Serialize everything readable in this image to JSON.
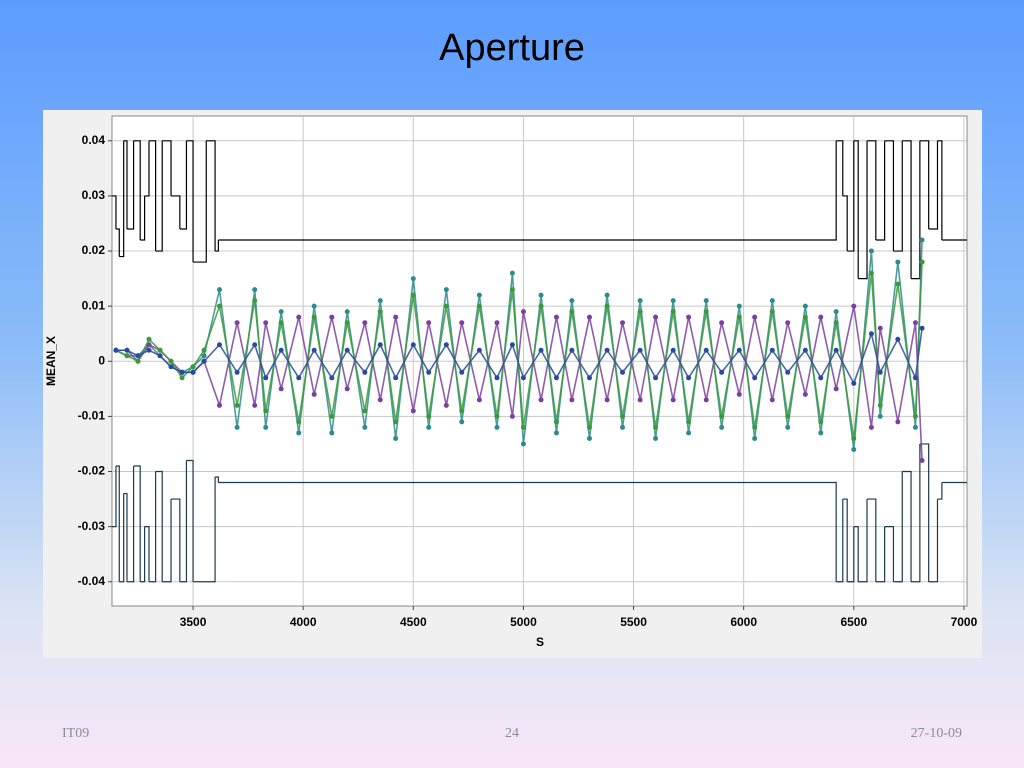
{
  "slide": {
    "title": "Aperture",
    "footer_left": "IT09",
    "page_number": "24",
    "date": "27-10-09"
  },
  "chart_data": {
    "type": "line",
    "x_label": "S",
    "y_label": "MEAN_X",
    "xlim": [
      3132,
      7014
    ],
    "ylim": [
      -0.0444,
      0.0445
    ],
    "xticks": [
      3500,
      4000,
      4500,
      5000,
      5500,
      6000,
      6500,
      7000
    ],
    "yticks": [
      -0.04,
      -0.03,
      -0.02,
      -0.01,
      0,
      0.01,
      0.02,
      0.03,
      0.04
    ],
    "grid": true,
    "series": [
      {
        "color": "#000000",
        "step": true,
        "x": [
          3132,
          3150,
          3165,
          3185,
          3200,
          3230,
          3260,
          3280,
          3300,
          3330,
          3360,
          3400,
          3440,
          3470,
          3500,
          3560,
          3600,
          3615,
          6420,
          6450,
          6470,
          6500,
          6520,
          6560,
          6600,
          6640,
          6680,
          6720,
          6760,
          6800,
          6840,
          6880,
          6900,
          7014
        ],
        "values": [
          0.03,
          0.024,
          0.019,
          0.04,
          0.024,
          0.04,
          0.022,
          0.03,
          0.04,
          0.02,
          0.04,
          0.03,
          0.024,
          0.04,
          0.018,
          0.04,
          0.02,
          0.022,
          0.04,
          0.03,
          0.02,
          0.04,
          0.015,
          0.04,
          0.022,
          0.04,
          0.02,
          0.04,
          0.015,
          0.04,
          0.024,
          0.04,
          0.022,
          0.022
        ]
      },
      {
        "color": "#1c3a4c",
        "step": true,
        "x": [
          3132,
          3150,
          3165,
          3185,
          3200,
          3230,
          3260,
          3280,
          3300,
          3330,
          3360,
          3400,
          3440,
          3470,
          3500,
          3560,
          3600,
          3615,
          6420,
          6450,
          6470,
          6500,
          6520,
          6560,
          6600,
          6640,
          6680,
          6720,
          6760,
          6800,
          6840,
          6880,
          6900,
          7014
        ],
        "values": [
          -0.03,
          -0.019,
          -0.04,
          -0.024,
          -0.04,
          -0.019,
          -0.04,
          -0.03,
          -0.04,
          -0.02,
          -0.04,
          -0.025,
          -0.04,
          -0.018,
          -0.04,
          -0.04,
          -0.021,
          -0.022,
          -0.04,
          -0.025,
          -0.04,
          -0.03,
          -0.04,
          -0.025,
          -0.04,
          -0.03,
          -0.04,
          -0.02,
          -0.04,
          -0.015,
          -0.04,
          -0.025,
          -0.022,
          -0.022
        ]
      },
      {
        "color": "#2e8b8b",
        "x": [
          3150,
          3200,
          3250,
          3300,
          3350,
          3400,
          3450,
          3500,
          3550,
          3620,
          3700,
          3780,
          3830,
          3900,
          3980,
          4050,
          4130,
          4200,
          4280,
          4350,
          4420,
          4500,
          4570,
          4650,
          4720,
          4800,
          4880,
          4950,
          5000,
          5080,
          5150,
          5220,
          5300,
          5380,
          5450,
          5530,
          5600,
          5680,
          5750,
          5830,
          5900,
          5980,
          6050,
          6130,
          6200,
          6280,
          6350,
          6420,
          6500,
          6580,
          6620,
          6700,
          6780,
          6810
        ],
        "values": [
          0.002,
          0.001,
          0.001,
          0.003,
          0.001,
          -0.001,
          -0.002,
          -0.001,
          0.001,
          0.013,
          -0.012,
          0.013,
          -0.012,
          0.009,
          -0.013,
          0.01,
          -0.013,
          0.009,
          -0.012,
          0.011,
          -0.014,
          0.015,
          -0.012,
          0.013,
          -0.011,
          0.012,
          -0.012,
          0.016,
          -0.015,
          0.012,
          -0.013,
          0.011,
          -0.014,
          0.012,
          -0.012,
          0.011,
          -0.014,
          0.011,
          -0.013,
          0.011,
          -0.012,
          0.01,
          -0.014,
          0.011,
          -0.012,
          0.01,
          -0.013,
          0.009,
          -0.016,
          0.02,
          -0.01,
          0.018,
          -0.012,
          0.022
        ]
      },
      {
        "color": "#7b3fa0",
        "x": [
          3150,
          3200,
          3250,
          3300,
          3350,
          3400,
          3450,
          3500,
          3550,
          3620,
          3700,
          3780,
          3830,
          3900,
          3980,
          4050,
          4130,
          4200,
          4280,
          4350,
          4420,
          4500,
          4570,
          4650,
          4720,
          4800,
          4880,
          4950,
          5000,
          5080,
          5150,
          5220,
          5300,
          5380,
          5450,
          5530,
          5600,
          5680,
          5750,
          5830,
          5900,
          5980,
          6050,
          6130,
          6200,
          6280,
          6350,
          6420,
          6500,
          6580,
          6620,
          6700,
          6780,
          6810
        ],
        "values": [
          0.002,
          0.002,
          0,
          0.003,
          0.002,
          0,
          -0.002,
          -0.002,
          0,
          -0.008,
          0.007,
          -0.008,
          0.007,
          -0.005,
          0.008,
          -0.006,
          0.008,
          -0.005,
          0.007,
          -0.007,
          0.008,
          -0.009,
          0.007,
          -0.008,
          0.007,
          -0.007,
          0.007,
          -0.01,
          0.009,
          -0.007,
          0.008,
          -0.007,
          0.008,
          -0.007,
          0.007,
          -0.007,
          0.008,
          -0.007,
          0.008,
          -0.007,
          0.007,
          -0.006,
          0.008,
          -0.007,
          0.007,
          -0.006,
          0.008,
          -0.005,
          0.01,
          -0.012,
          0.006,
          -0.011,
          0.007,
          -0.018
        ]
      },
      {
        "color": "#3a9a3a",
        "x": [
          3150,
          3200,
          3250,
          3300,
          3350,
          3400,
          3450,
          3500,
          3550,
          3620,
          3700,
          3780,
          3830,
          3900,
          3980,
          4050,
          4130,
          4200,
          4280,
          4350,
          4420,
          4500,
          4570,
          4650,
          4720,
          4800,
          4880,
          4950,
          5000,
          5080,
          5150,
          5220,
          5300,
          5380,
          5450,
          5530,
          5600,
          5680,
          5750,
          5830,
          5900,
          5980,
          6050,
          6130,
          6200,
          6280,
          6350,
          6420,
          6500,
          6580,
          6620,
          6700,
          6780,
          6810
        ],
        "values": [
          0.002,
          0.001,
          0,
          0.004,
          0.002,
          0,
          -0.003,
          -0.001,
          0.002,
          0.01,
          -0.008,
          0.011,
          -0.009,
          0.007,
          -0.011,
          0.008,
          -0.01,
          0.007,
          -0.009,
          0.009,
          -0.011,
          0.012,
          -0.01,
          0.01,
          -0.009,
          0.01,
          -0.01,
          0.013,
          -0.012,
          0.01,
          -0.011,
          0.009,
          -0.012,
          0.01,
          -0.01,
          0.009,
          -0.012,
          0.009,
          -0.011,
          0.009,
          -0.01,
          0.008,
          -0.012,
          0.009,
          -0.01,
          0.008,
          -0.011,
          0.007,
          -0.014,
          0.016,
          -0.008,
          0.014,
          -0.01,
          0.018
        ]
      },
      {
        "color": "#2a4aa0",
        "x": [
          3150,
          3200,
          3250,
          3300,
          3350,
          3400,
          3450,
          3500,
          3550,
          3620,
          3700,
          3780,
          3830,
          3900,
          3980,
          4050,
          4130,
          4200,
          4280,
          4350,
          4420,
          4500,
          4570,
          4650,
          4720,
          4800,
          4880,
          4950,
          5000,
          5080,
          5150,
          5220,
          5300,
          5380,
          5450,
          5530,
          5600,
          5680,
          5750,
          5830,
          5900,
          5980,
          6050,
          6130,
          6200,
          6280,
          6350,
          6420,
          6500,
          6580,
          6620,
          6700,
          6780,
          6810
        ],
        "values": [
          0.002,
          0.002,
          0.001,
          0.002,
          0.001,
          -0.001,
          -0.002,
          -0.002,
          0,
          0.003,
          -0.002,
          0.003,
          -0.003,
          0.002,
          -0.003,
          0.002,
          -0.003,
          0.002,
          -0.002,
          0.003,
          -0.003,
          0.003,
          -0.002,
          0.003,
          -0.002,
          0.002,
          -0.003,
          0.003,
          -0.003,
          0.002,
          -0.003,
          0.002,
          -0.003,
          0.002,
          -0.002,
          0.002,
          -0.003,
          0.002,
          -0.003,
          0.002,
          -0.002,
          0.002,
          -0.003,
          0.002,
          -0.002,
          0.002,
          -0.003,
          0.002,
          -0.004,
          0.005,
          -0.002,
          0.004,
          -0.003,
          0.006
        ]
      }
    ]
  }
}
